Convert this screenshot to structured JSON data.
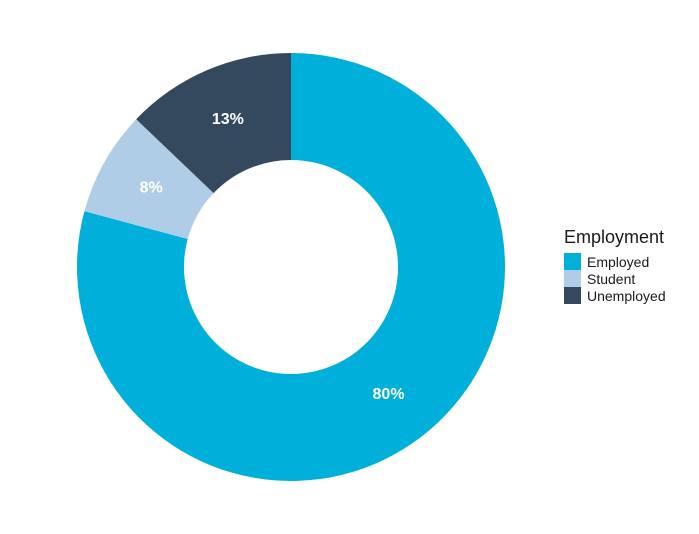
{
  "chart_data": {
    "type": "pie",
    "donut": true,
    "legend_title": "Employment",
    "legend_position": "right",
    "slices": [
      {
        "label": "Employed",
        "value": 80,
        "display": "80%",
        "color": "#00b0da"
      },
      {
        "label": "Student",
        "value": 8,
        "display": "8%",
        "color": "#b0cde8"
      },
      {
        "label": "Unemployed",
        "value": 13,
        "display": "13%",
        "color": "#34495e"
      }
    ]
  }
}
